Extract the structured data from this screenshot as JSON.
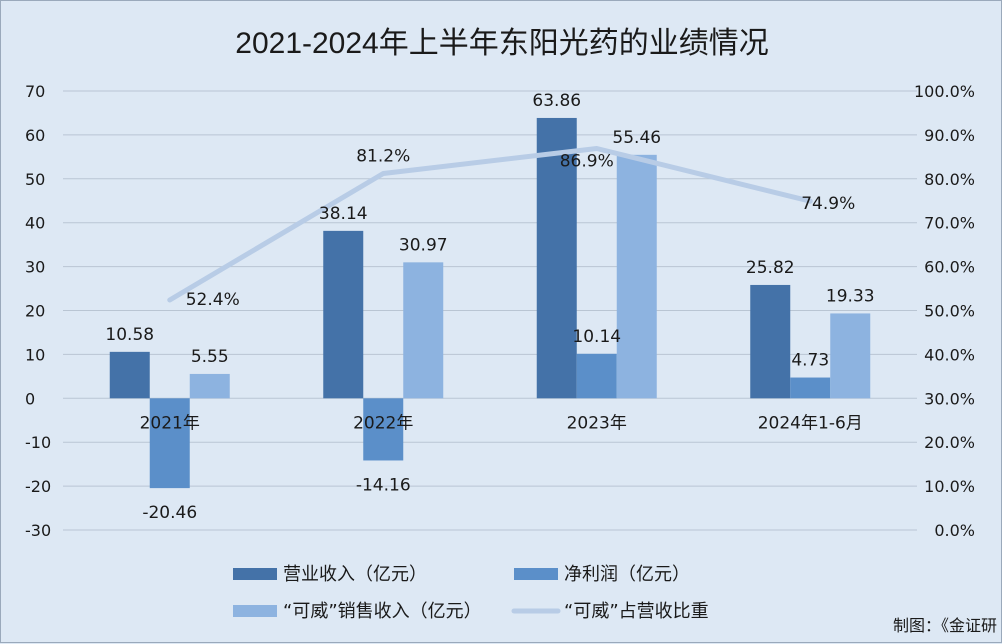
{
  "chart_data": {
    "type": "bar",
    "title": "2021-2024年上半年东阳光药的业绩情况",
    "categories": [
      "2021年",
      "2022年",
      "2023年",
      "2024年1-6月"
    ],
    "series": [
      {
        "name": "营业收入（亿元）",
        "kind": "bar",
        "axis": "left",
        "color": "#4472a8",
        "values": [
          10.58,
          38.14,
          63.86,
          25.82
        ]
      },
      {
        "name": "净利润（亿元）",
        "kind": "bar",
        "axis": "left",
        "color": "#5b8fc9",
        "values": [
          -20.46,
          -14.16,
          10.14,
          4.73
        ]
      },
      {
        "name": "“可威”销售收入（亿元）",
        "kind": "bar",
        "axis": "left",
        "color": "#8db3e0",
        "values": [
          5.55,
          30.97,
          55.46,
          19.33
        ]
      },
      {
        "name": "“可威”占营收比重",
        "kind": "line",
        "axis": "right",
        "color": "#b8cce6",
        "values": [
          52.4,
          81.2,
          86.9,
          74.9
        ],
        "value_labels": [
          "52.4%",
          "81.2%",
          "86.9%",
          "74.9%"
        ]
      }
    ],
    "y_left": {
      "min": -30,
      "max": 70,
      "step": 10,
      "ticks": [
        "70",
        "60",
        "50",
        "40",
        "30",
        "20",
        "10",
        "0",
        "-10",
        "-20",
        "-30"
      ]
    },
    "y_right": {
      "min": 0,
      "max": 100,
      "step": 10,
      "ticks": [
        "100.0%",
        "90.0%",
        "80.0%",
        "70.0%",
        "60.0%",
        "50.0%",
        "40.0%",
        "30.0%",
        "20.0%",
        "10.0%",
        "0.0%"
      ]
    },
    "bar_labels": [
      [
        "10.58",
        "-20.46",
        "5.55"
      ],
      [
        "38.14",
        "-14.16",
        "30.97"
      ],
      [
        "63.86",
        "10.14",
        "55.46"
      ],
      [
        "25.82",
        "4.73",
        "19.33"
      ]
    ],
    "grid": true,
    "legend": "bottom",
    "credit": "制图：《金证研"
  }
}
